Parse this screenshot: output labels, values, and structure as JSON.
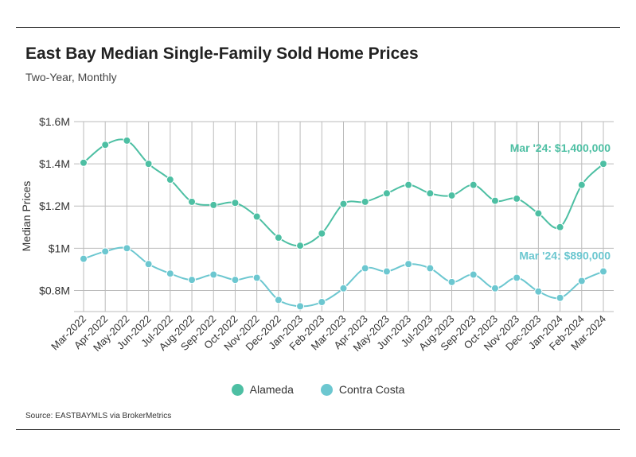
{
  "header": {
    "title": "East Bay Median Single-Family Sold Home Prices",
    "subtitle": "Two-Year, Monthly"
  },
  "footer": {
    "source": "Source:  EASTBAYMLS via BrokerMetrics"
  },
  "colors": {
    "alameda": "#4dbfa3",
    "contra_costa": "#6cc7d0",
    "grid": "#bbbbbb",
    "text": "#222222"
  },
  "chart_data": {
    "type": "line",
    "ylabel": "Median Prices",
    "xlabel": "",
    "ylim": [
      700000,
      1600000
    ],
    "yticks": [
      {
        "value": 800000,
        "label": "$0.8M"
      },
      {
        "value": 1000000,
        "label": "$1M"
      },
      {
        "value": 1200000,
        "label": "$1.2M"
      },
      {
        "value": 1400000,
        "label": "$1.4M"
      },
      {
        "value": 1600000,
        "label": "$1.6M"
      }
    ],
    "grid": true,
    "legend": "bottom-center",
    "categories": [
      "Mar-2022",
      "Apr-2022",
      "May-2022",
      "Jun-2022",
      "Jul-2022",
      "Aug-2022",
      "Sep-2022",
      "Oct-2022",
      "Nov-2022",
      "Dec-2022",
      "Jan-2023",
      "Feb-2023",
      "Mar-2023",
      "Apr-2023",
      "May-2023",
      "Jun-2023",
      "Jul-2023",
      "Aug-2023",
      "Sep-2023",
      "Oct-2023",
      "Nov-2023",
      "Dec-2023",
      "Jan-2024",
      "Feb-2024",
      "Mar-2024"
    ],
    "series": [
      {
        "name": "Alameda",
        "values": [
          1405000,
          1490000,
          1510000,
          1400000,
          1325000,
          1220000,
          1205000,
          1215000,
          1150000,
          1050000,
          1012000,
          1070000,
          1210000,
          1220000,
          1260000,
          1300000,
          1260000,
          1250000,
          1300000,
          1225000,
          1235000,
          1165000,
          1100000,
          1300000,
          1400000
        ],
        "end_label": "Mar '24: $1,400,000"
      },
      {
        "name": "Contra Costa",
        "values": [
          950000,
          985000,
          1000000,
          925000,
          880000,
          850000,
          875000,
          850000,
          860000,
          755000,
          725000,
          745000,
          810000,
          905000,
          890000,
          925000,
          905000,
          840000,
          875000,
          810000,
          860000,
          795000,
          765000,
          845000,
          890000
        ],
        "end_label": "Mar '24: $890,000"
      }
    ]
  }
}
